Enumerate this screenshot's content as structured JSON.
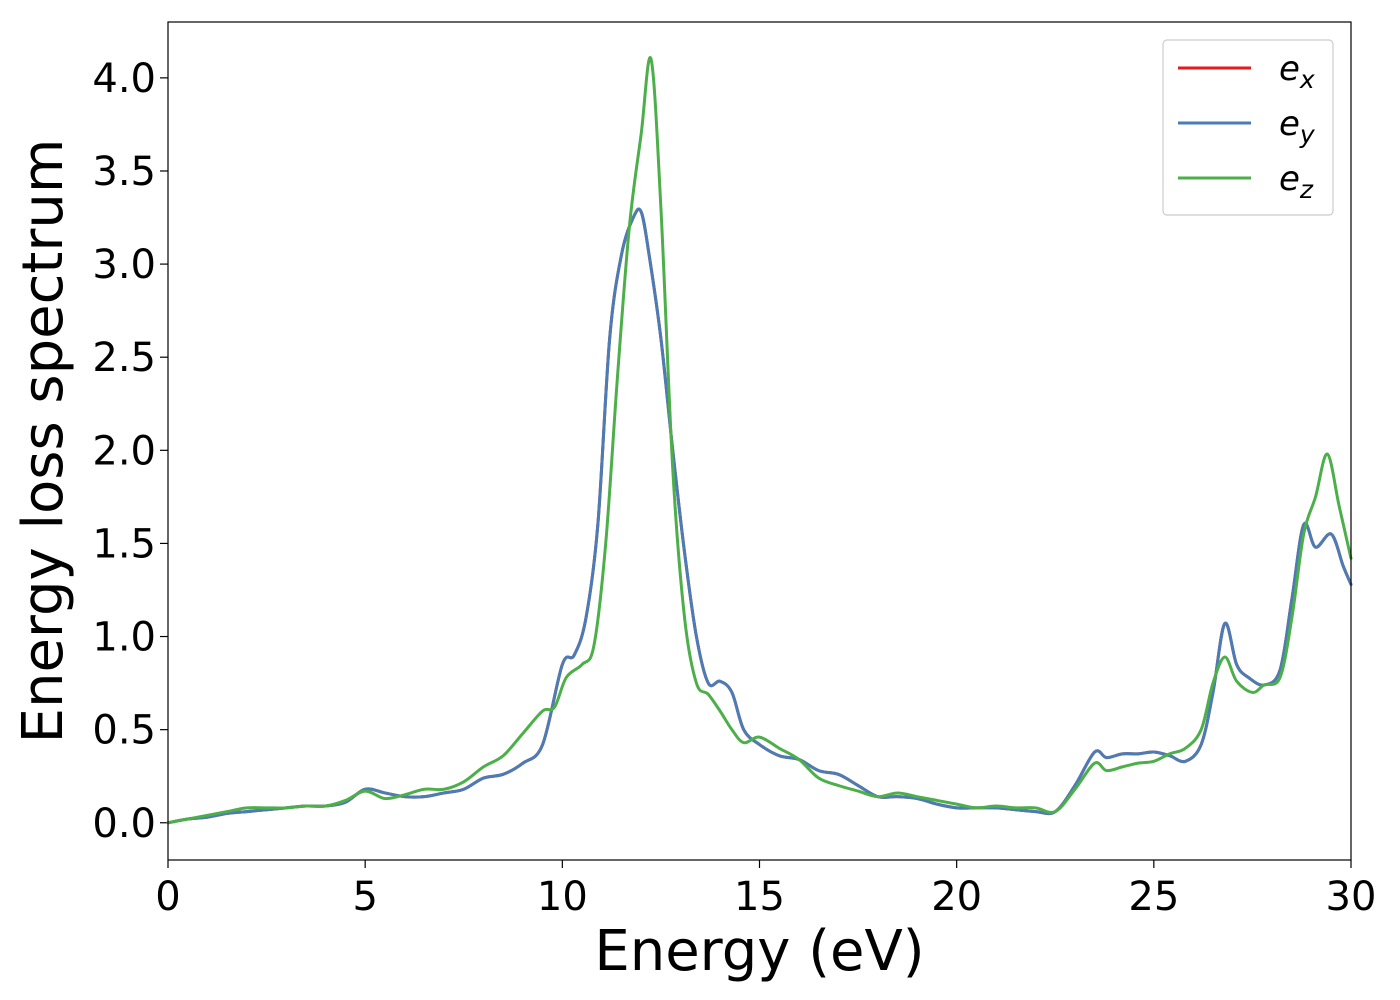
{
  "chart_data": {
    "type": "line",
    "xlabel": "Energy (eV)",
    "ylabel": "Energy loss spectrum",
    "xlim": [
      0,
      30
    ],
    "ylim": [
      -0.2,
      4.3
    ],
    "xticks": [
      0,
      5,
      10,
      15,
      20,
      25,
      30
    ],
    "xtick_labels": [
      "0",
      "5",
      "10",
      "15",
      "20",
      "25",
      "30"
    ],
    "yticks": [
      0.0,
      0.5,
      1.0,
      1.5,
      2.0,
      2.5,
      3.0,
      3.5,
      4.0
    ],
    "ytick_labels": [
      "0.0",
      "0.5",
      "1.0",
      "1.5",
      "2.0",
      "2.5",
      "3.0",
      "3.5",
      "4.0"
    ],
    "grid": false,
    "legend_position": "top-right",
    "series": [
      {
        "name": "e_x",
        "label_base": "e",
        "label_sub": "x",
        "color": "#e41a1c",
        "x": [
          0,
          0.5,
          1,
          1.5,
          2,
          2.5,
          3,
          3.5,
          4,
          4.5,
          5,
          5.5,
          6,
          6.5,
          7,
          7.5,
          8,
          8.5,
          9,
          9.5,
          10,
          10.3,
          10.6,
          10.9,
          11.2,
          11.5,
          11.8,
          12.0,
          12.2,
          12.5,
          12.8,
          13.1,
          13.4,
          13.7,
          14.0,
          14.3,
          14.6,
          15.0,
          15.5,
          16.0,
          16.5,
          17.0,
          17.5,
          18.0,
          18.5,
          19.0,
          19.5,
          20.0,
          20.5,
          21.0,
          21.5,
          22.0,
          22.5,
          23.0,
          23.5,
          23.8,
          24.2,
          24.6,
          25.0,
          25.4,
          25.8,
          26.2,
          26.5,
          26.8,
          27.1,
          27.4,
          27.8,
          28.2,
          28.5,
          28.8,
          29.1,
          29.5,
          29.8,
          30.0
        ],
        "values": [
          0.0,
          0.02,
          0.03,
          0.05,
          0.06,
          0.07,
          0.08,
          0.09,
          0.09,
          0.11,
          0.18,
          0.16,
          0.14,
          0.14,
          0.16,
          0.18,
          0.24,
          0.26,
          0.32,
          0.42,
          0.85,
          0.9,
          1.1,
          1.6,
          2.6,
          3.05,
          3.25,
          3.28,
          3.05,
          2.6,
          2.0,
          1.45,
          1.0,
          0.75,
          0.76,
          0.7,
          0.5,
          0.42,
          0.36,
          0.34,
          0.28,
          0.26,
          0.2,
          0.14,
          0.14,
          0.13,
          0.1,
          0.08,
          0.08,
          0.08,
          0.07,
          0.06,
          0.06,
          0.2,
          0.38,
          0.35,
          0.37,
          0.37,
          0.38,
          0.36,
          0.33,
          0.42,
          0.7,
          1.07,
          0.85,
          0.78,
          0.74,
          0.82,
          1.2,
          1.6,
          1.48,
          1.55,
          1.38,
          1.28
        ]
      },
      {
        "name": "e_y",
        "label_base": "e",
        "label_sub": "y",
        "color": "#4a7db5",
        "x": [
          0,
          0.5,
          1,
          1.5,
          2,
          2.5,
          3,
          3.5,
          4,
          4.5,
          5,
          5.5,
          6,
          6.5,
          7,
          7.5,
          8,
          8.5,
          9,
          9.5,
          10,
          10.3,
          10.6,
          10.9,
          11.2,
          11.5,
          11.8,
          12.0,
          12.2,
          12.5,
          12.8,
          13.1,
          13.4,
          13.7,
          14.0,
          14.3,
          14.6,
          15.0,
          15.5,
          16.0,
          16.5,
          17.0,
          17.5,
          18.0,
          18.5,
          19.0,
          19.5,
          20.0,
          20.5,
          21.0,
          21.5,
          22.0,
          22.5,
          23.0,
          23.5,
          23.8,
          24.2,
          24.6,
          25.0,
          25.4,
          25.8,
          26.2,
          26.5,
          26.8,
          27.1,
          27.4,
          27.8,
          28.2,
          28.5,
          28.8,
          29.1,
          29.5,
          29.8,
          30.0
        ],
        "values": [
          0.0,
          0.02,
          0.03,
          0.05,
          0.06,
          0.07,
          0.08,
          0.09,
          0.09,
          0.11,
          0.18,
          0.16,
          0.14,
          0.14,
          0.16,
          0.18,
          0.24,
          0.26,
          0.32,
          0.42,
          0.85,
          0.9,
          1.1,
          1.6,
          2.6,
          3.05,
          3.25,
          3.28,
          3.05,
          2.6,
          2.0,
          1.45,
          1.0,
          0.75,
          0.76,
          0.7,
          0.5,
          0.42,
          0.36,
          0.34,
          0.28,
          0.26,
          0.2,
          0.14,
          0.14,
          0.13,
          0.1,
          0.08,
          0.08,
          0.08,
          0.07,
          0.06,
          0.06,
          0.2,
          0.38,
          0.35,
          0.37,
          0.37,
          0.38,
          0.36,
          0.33,
          0.42,
          0.7,
          1.07,
          0.85,
          0.78,
          0.74,
          0.82,
          1.2,
          1.6,
          1.48,
          1.55,
          1.38,
          1.28
        ]
      },
      {
        "name": "e_z",
        "label_base": "e",
        "label_sub": "z",
        "color": "#4daf4a",
        "x": [
          0,
          0.5,
          1,
          1.5,
          2,
          2.5,
          3,
          3.5,
          4,
          4.5,
          5,
          5.5,
          6,
          6.5,
          7,
          7.5,
          8,
          8.5,
          9,
          9.5,
          9.8,
          10.1,
          10.5,
          10.8,
          11.1,
          11.4,
          11.7,
          12.0,
          12.25,
          12.5,
          12.8,
          13.1,
          13.4,
          13.7,
          14.0,
          14.3,
          14.6,
          15.0,
          15.5,
          16.0,
          16.5,
          17.0,
          17.5,
          18.0,
          18.5,
          19.0,
          19.5,
          20.0,
          20.5,
          21.0,
          21.5,
          22.0,
          22.5,
          23.0,
          23.5,
          23.8,
          24.2,
          24.6,
          25.0,
          25.4,
          25.8,
          26.2,
          26.5,
          26.8,
          27.1,
          27.5,
          27.8,
          28.2,
          28.5,
          28.8,
          29.1,
          29.4,
          29.7,
          30.0
        ],
        "values": [
          0.0,
          0.02,
          0.04,
          0.06,
          0.08,
          0.08,
          0.08,
          0.09,
          0.09,
          0.12,
          0.17,
          0.13,
          0.15,
          0.18,
          0.18,
          0.22,
          0.3,
          0.36,
          0.48,
          0.6,
          0.62,
          0.78,
          0.85,
          0.95,
          1.5,
          2.4,
          3.2,
          3.7,
          4.1,
          3.3,
          1.9,
          1.1,
          0.75,
          0.69,
          0.6,
          0.5,
          0.43,
          0.46,
          0.4,
          0.34,
          0.24,
          0.2,
          0.17,
          0.14,
          0.16,
          0.14,
          0.12,
          0.1,
          0.08,
          0.09,
          0.08,
          0.08,
          0.06,
          0.18,
          0.32,
          0.28,
          0.3,
          0.32,
          0.33,
          0.37,
          0.4,
          0.5,
          0.75,
          0.89,
          0.76,
          0.7,
          0.74,
          0.78,
          1.1,
          1.55,
          1.75,
          1.98,
          1.7,
          1.42
        ]
      }
    ]
  }
}
